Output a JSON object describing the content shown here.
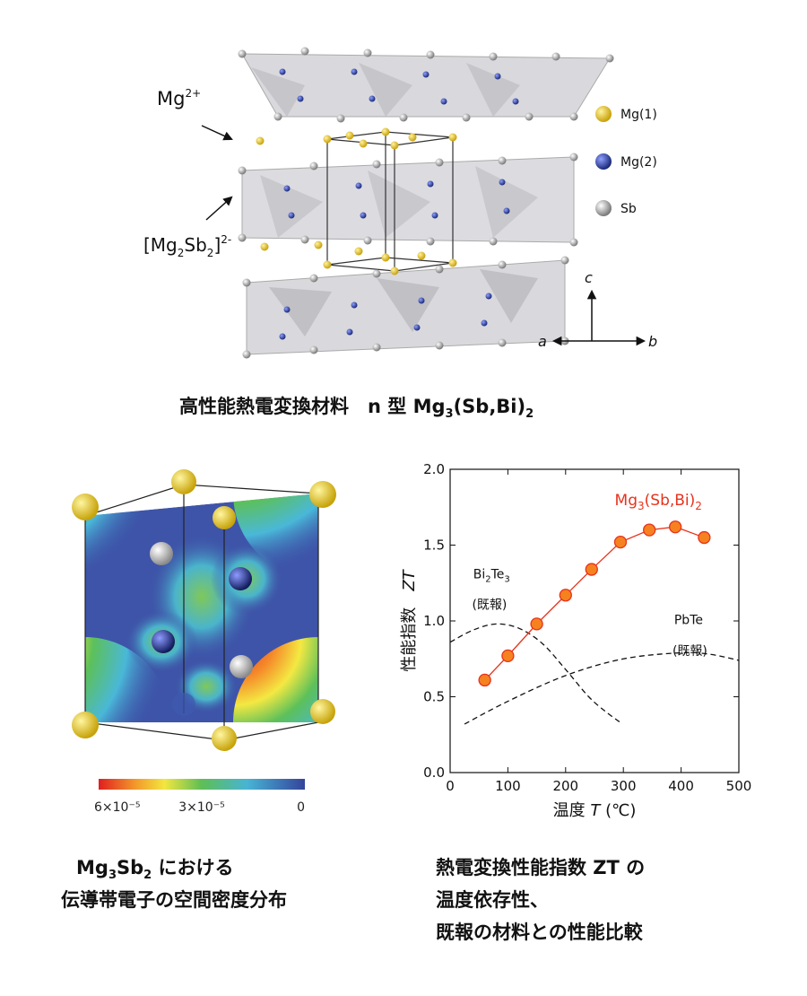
{
  "top": {
    "label_mg2": "Mg",
    "label_mg2_sup": "2+",
    "label_layer_pre": "[Mg",
    "label_layer_sub1": "2",
    "label_layer_mid": "Sb",
    "label_layer_sub2": "2",
    "label_layer_post": "]",
    "label_layer_sup": "2-",
    "legend": [
      {
        "label": "Mg(1)",
        "color": "#e3c51c"
      },
      {
        "label": "Mg(2)",
        "color": "#243a8f"
      },
      {
        "label": "Sb",
        "color": "#d6d6d6"
      }
    ],
    "axis_c": "c",
    "axis_a": "a",
    "axis_b": "b",
    "caption_main": "高性能熱電変換材料　n 型 Mg",
    "caption_sub1": "3",
    "caption_mid": "(Sb,Bi)",
    "caption_sub2": "2"
  },
  "density": {
    "colorbar_labels": [
      "6×10⁻⁵",
      "3×10⁻⁵",
      "0"
    ],
    "caption_line1_pre": "Mg",
    "caption_line1_sub1": "3",
    "caption_line1_mid": "Sb",
    "caption_line1_sub2": "2",
    "caption_line1_post": " における",
    "caption_line2": "伝導帯電子の空間密度分布"
  },
  "chart_data": {
    "type": "line",
    "xlabel_pre": "温度 ",
    "xlabel_var": "T",
    "xlabel_unit": " (℃)",
    "ylabel_text": "性能指数",
    "ylabel_var": "ZT",
    "xlim": [
      0,
      500
    ],
    "ylim": [
      0.0,
      2.0
    ],
    "xticks": [
      "0",
      "100",
      "200",
      "300",
      "400",
      "500"
    ],
    "yticks": [
      "0.0",
      "0.5",
      "1.0",
      "1.5",
      "2.0"
    ],
    "series": [
      {
        "name": "Mg3(Sb,Bi)2",
        "label_pre": "Mg",
        "label_sub1": "3",
        "label_mid": "(Sb,Bi)",
        "label_sub2": "2",
        "color": "#e8321c",
        "marker_fill": "#f5821f",
        "x": [
          60,
          100,
          150,
          200,
          245,
          295,
          345,
          390,
          440
        ],
        "y": [
          0.61,
          0.77,
          0.98,
          1.17,
          1.34,
          1.52,
          1.6,
          1.62,
          1.55
        ]
      },
      {
        "name": "Bi2Te3",
        "label_pre": "Bi",
        "label_sub1": "2",
        "label_mid": "Te",
        "label_sub2": "3",
        "label_note": "(既報)",
        "style": "dashed",
        "x": [
          0,
          40,
          80,
          120,
          160,
          200,
          240,
          270,
          295
        ],
        "y": [
          0.86,
          0.94,
          0.98,
          0.95,
          0.85,
          0.68,
          0.5,
          0.4,
          0.33
        ]
      },
      {
        "name": "PbTe",
        "label_pre": "PbTe",
        "label_note": "(既報)",
        "style": "dashed",
        "x": [
          25,
          100,
          200,
          300,
          400,
          450,
          500
        ],
        "y": [
          0.32,
          0.47,
          0.64,
          0.75,
          0.79,
          0.78,
          0.74
        ]
      }
    ],
    "caption_line1": "熱電変換性能指数 ZT の",
    "caption_line2": "温度依存性、",
    "caption_line3": "既報の材料との性能比較"
  }
}
